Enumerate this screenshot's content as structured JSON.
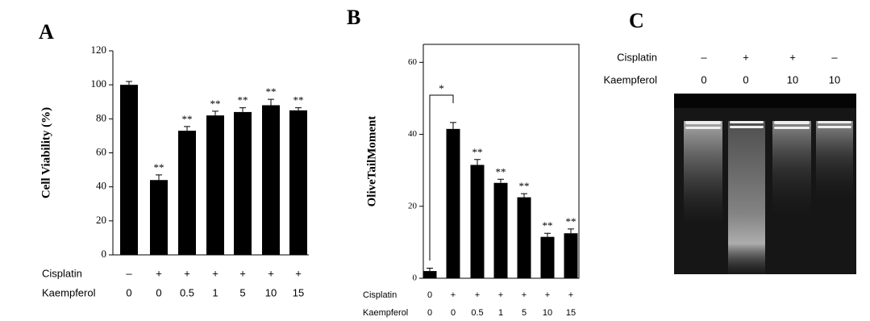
{
  "chart_data": [
    {
      "type": "bar",
      "panel": "A",
      "y_label": "Cell Viability (%)",
      "category_rows": [
        {
          "name": "Cisplatin",
          "labels": [
            "–",
            "+",
            "+",
            "+",
            "+",
            "+",
            "+"
          ]
        },
        {
          "name": "Kaempferol",
          "labels": [
            "0",
            "0",
            "0.5",
            "1",
            "5",
            "10",
            "15"
          ]
        }
      ],
      "series": [
        {
          "color": "#000000",
          "values": [
            100,
            44,
            73,
            82,
            84,
            88,
            85
          ],
          "errors": [
            2,
            3,
            2.5,
            2.5,
            2.5,
            3.5,
            1.5
          ]
        }
      ],
      "significance": [
        null,
        "**",
        "**",
        "**",
        "**",
        "**",
        "**"
      ],
      "ylim": [
        0,
        120
      ],
      "yticks": [
        0,
        20,
        40,
        60,
        80,
        100,
        120
      ]
    },
    {
      "type": "bar",
      "panel": "B",
      "y_label": "OliveTailMoment",
      "category_rows": [
        {
          "name": "Cisplatin",
          "labels": [
            "0",
            "+",
            "+",
            "+",
            "+",
            "+",
            "+"
          ]
        },
        {
          "name": "Kaempferol",
          "labels": [
            "0",
            "0",
            "0.5",
            "1",
            "5",
            "10",
            "15"
          ]
        }
      ],
      "series": [
        {
          "color": "#000000",
          "values": [
            2,
            41.5,
            31.5,
            26.5,
            22.5,
            11.5,
            12.5
          ],
          "errors": [
            0.8,
            1.8,
            1.5,
            1,
            1,
            1,
            1.2
          ]
        }
      ],
      "significance": [
        null,
        null,
        "**",
        "**",
        "**",
        "**",
        "**"
      ],
      "bracket_label": "*",
      "ylim": [
        0,
        65
      ],
      "yticks": [
        0,
        20,
        40,
        60
      ]
    }
  ],
  "gel": {
    "panel": "C",
    "rows": [
      {
        "name": "Cisplatin",
        "labels": [
          "–",
          "+",
          "+",
          "–"
        ]
      },
      {
        "name": "Kaempferol",
        "labels": [
          "0",
          "0",
          "10",
          "10"
        ]
      }
    ]
  }
}
